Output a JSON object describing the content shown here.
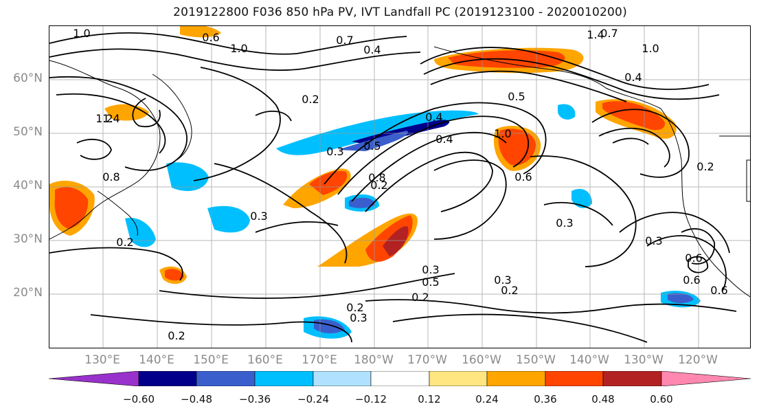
{
  "title": "2019122800 F036 850 hPa PV, IVT Landfall PC (2019123100 - 2020010200)",
  "lat_labels": [
    "60°N",
    "50°N",
    "40°N",
    "30°N",
    "20°N"
  ],
  "lon_labels": [
    "130°E",
    "140°E",
    "150°E",
    "160°E",
    "170°E",
    "180°W",
    "170°W",
    "160°W",
    "150°W",
    "140°W",
    "130°W",
    "120°W"
  ],
  "colorbar": {
    "ticks": [
      "−0.60",
      "−0.48",
      "−0.36",
      "−0.24",
      "−0.12",
      "0.12",
      "0.24",
      "0.36",
      "0.48",
      "0.60"
    ],
    "colors": [
      "#9932cc",
      "#00008b",
      "#3a5fcd",
      "#00bfff",
      "#b0e2ff",
      "#ffffff",
      "#ffe680",
      "#ffa500",
      "#ff4500",
      "#b22222",
      "#ff88b0"
    ]
  },
  "contour_labels": [
    "1.0",
    "0.6",
    "1.0",
    "0.7",
    "0.4",
    "0.7",
    "1.4",
    "1.0",
    "0.4",
    "1.4",
    "1.2",
    "0.2",
    "0.3",
    "0.5",
    "0.4",
    "0.5",
    "1.0",
    "0.8",
    "0.6",
    "0.2",
    "0.3",
    "0.8",
    "0.3",
    "0.2",
    "0.2",
    "0.3",
    "0.2",
    "0.3",
    "0.6",
    "0.6",
    "0.6",
    "0.5",
    "0.2",
    "0.2",
    "0.3",
    "0.3",
    "0.2",
    "0.4",
    "0.7"
  ]
}
